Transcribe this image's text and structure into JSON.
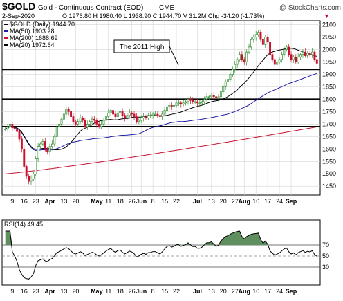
{
  "header": {
    "symbol": "$GOLD",
    "name": "Gold - Continuous Contract (EOD)",
    "exchange": "CME",
    "watermark": "@ StockCharts.com",
    "date": "2-Sep-2020",
    "ohlc": "O 1976.80  H 1980.40  L 1938.90  C 1944.70  V 31.2M  Chg -34.20 (-1.73%)",
    "arrow": "▼"
  },
  "legend": [
    {
      "label": "$GOLD (Daily) 1944.70",
      "color": "#000000"
    },
    {
      "label": "MA(50) 1903.28",
      "color": "#1c1ca8"
    },
    {
      "label": "MA(200) 1688.69",
      "color": "#c8102e"
    },
    {
      "label": "MA(20) 1972.64",
      "color": "#000000"
    }
  ],
  "annotation": "The 2011 High",
  "colors": {
    "up": "#2e8b2e",
    "down": "#c8102e",
    "ma50": "#1c1ca8",
    "ma200": "#c8102e",
    "ma20": "#000000",
    "rsi_fill": "#5f8f5f",
    "grid": "#d4d4d4"
  },
  "chart_data": {
    "type": "candlestick",
    "title": "$GOLD Gold - Continuous Contract (EOD) CME",
    "ylim": [
      1420,
      2110
    ],
    "y_ticks": [
      1450,
      1500,
      1550,
      1600,
      1650,
      1700,
      1750,
      1800,
      1850,
      1900,
      1950,
      2000,
      2050,
      2100
    ],
    "x_tick_labels": [
      {
        "i": 3,
        "label": "9"
      },
      {
        "i": 8,
        "label": "16"
      },
      {
        "i": 13,
        "label": "23"
      },
      {
        "i": 19,
        "label": "Apr"
      },
      {
        "i": 25,
        "label": "13"
      },
      {
        "i": 30,
        "label": "20"
      },
      {
        "i": 39,
        "label": "May"
      },
      {
        "i": 44,
        "label": "11"
      },
      {
        "i": 49,
        "label": "18"
      },
      {
        "i": 54,
        "label": "26"
      },
      {
        "i": 58,
        "label": "Jun"
      },
      {
        "i": 63,
        "label": "8"
      },
      {
        "i": 68,
        "label": "15"
      },
      {
        "i": 73,
        "label": "22"
      },
      {
        "i": 82,
        "label": "Jul"
      },
      {
        "i": 88,
        "label": "13"
      },
      {
        "i": 93,
        "label": "20"
      },
      {
        "i": 98,
        "label": "27"
      },
      {
        "i": 102,
        "label": "Aug"
      },
      {
        "i": 107,
        "label": "10"
      },
      {
        "i": 112,
        "label": "17"
      },
      {
        "i": 117,
        "label": "24"
      },
      {
        "i": 122,
        "label": "Sep"
      }
    ],
    "support_lines": [
      1920,
      1800,
      1690
    ],
    "close": [
      1680,
      1690,
      1700,
      1685,
      1680,
      1670,
      1640,
      1600,
      1530,
      1490,
      1470,
      1480,
      1500,
      1560,
      1610,
      1620,
      1630,
      1600,
      1590,
      1610,
      1620,
      1650,
      1690,
      1700,
      1720,
      1740,
      1760,
      1750,
      1730,
      1710,
      1700,
      1710,
      1725,
      1715,
      1690,
      1700,
      1710,
      1720,
      1715,
      1700,
      1690,
      1700,
      1715,
      1730,
      1745,
      1755,
      1740,
      1730,
      1745,
      1750,
      1735,
      1725,
      1735,
      1745,
      1740,
      1730,
      1710,
      1715,
      1725,
      1730,
      1725,
      1735,
      1735,
      1740,
      1740,
      1735,
      1730,
      1740,
      1755,
      1770,
      1775,
      1770,
      1775,
      1785,
      1785,
      1780,
      1785,
      1790,
      1800,
      1795,
      1790,
      1790,
      1785,
      1785,
      1790,
      1800,
      1810,
      1810,
      1815,
      1810,
      1805,
      1810,
      1830,
      1850,
      1870,
      1880,
      1900,
      1920,
      1940,
      1960,
      1980,
      1960,
      1950,
      1990,
      2010,
      2040,
      2050,
      2060,
      2070,
      2040,
      2020,
      2050,
      2030,
      1980,
      1960,
      1940,
      1950,
      1960,
      1980,
      2000,
      2010,
      1980,
      1960,
      1970,
      1950,
      1970,
      1980,
      1990,
      1975,
      1985,
      1980,
      1990,
      1960,
      1944.7
    ],
    "ma50_end": 1903.28,
    "ma200_end": 1688.69,
    "ma20_end": 1972.64,
    "rsi": {
      "label": "RSI(14) 49.45",
      "ylim": [
        0,
        100
      ],
      "ticks": [
        30,
        50,
        70
      ],
      "levels": [
        30,
        70
      ],
      "last": 49.45
    }
  }
}
